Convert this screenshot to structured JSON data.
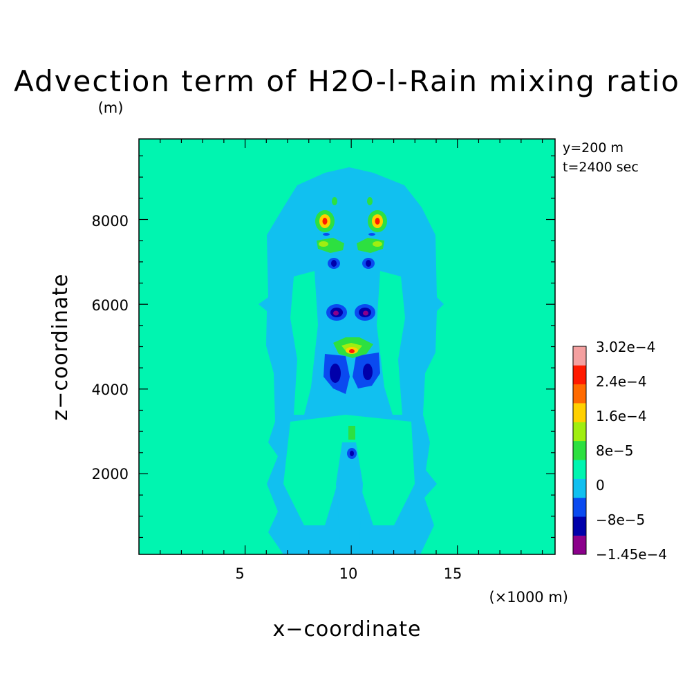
{
  "chart_data": {
    "type": "heatmap",
    "title": "Advection term of H2O-l-Rain mixing ratio",
    "title_units": "(m)",
    "xlabel": "x−coordinate",
    "ylabel": "z−coordinate",
    "x_unit_label": "(×1000 m)",
    "info_lines": [
      "y=200 m",
      "t=2400 sec"
    ],
    "xlim": [
      0,
      19.6
    ],
    "ylim": [
      100,
      9900
    ],
    "x_ticks": [
      5,
      10,
      15
    ],
    "x_tick_labels": [
      "5",
      "10",
      "15"
    ],
    "y_ticks": [
      2000,
      4000,
      6000,
      8000
    ],
    "y_tick_labels": [
      "2000",
      "4000",
      "6000",
      "8000"
    ],
    "grid": false,
    "legend": "right",
    "colorbar": {
      "colors": [
        "#8b008b",
        "#0000aa",
        "#0a4af0",
        "#11c0f0",
        "#00f5b0",
        "#2de040",
        "#a0ee10",
        "#ffd000",
        "#ff6a00",
        "#ff1a00",
        "#f4a0a0"
      ],
      "labels": [
        "−1.45e−4",
        "−8e−5",
        "0",
        "8e−5",
        "1.6e−4",
        "2.4e−4",
        "3.02e−4"
      ]
    },
    "background_level": "0",
    "regions": [
      {
        "level": "0 to -4e-5",
        "color": "#11c0f0",
        "x_range": [
          5.9,
          14.1
        ],
        "z_range": [
          100,
          9000
        ]
      },
      {
        "level": "8e-5 to 1.6e-4",
        "color": "#2de040",
        "center": [
          8.9,
          8000
        ]
      },
      {
        "level": "8e-5 to 1.6e-4",
        "color": "#2de040",
        "center": [
          11.4,
          8000
        ]
      },
      {
        "level": "2.4e-4 to 3.02e-4",
        "color": "#ff1a00",
        "center": [
          8.9,
          7980
        ]
      },
      {
        "level": "2.4e-4 to 3.02e-4",
        "color": "#ff1a00",
        "center": [
          11.4,
          7980
        ]
      },
      {
        "level": "8e-5 to 1.6e-4",
        "color": "#a0ee10",
        "center": [
          9.1,
          7450
        ]
      },
      {
        "level": "8e-5 to 1.6e-4",
        "color": "#a0ee10",
        "center": [
          11.2,
          7450
        ]
      },
      {
        "level": "-8e-5 to -1.45e-4",
        "color": "#0000aa",
        "center": [
          9.3,
          6950
        ]
      },
      {
        "level": "-8e-5 to -1.45e-4",
        "color": "#0000aa",
        "center": [
          11.0,
          6950
        ]
      },
      {
        "level": "-1.45e-4",
        "color": "#8b008b",
        "center": [
          9.4,
          5850
        ]
      },
      {
        "level": "-1.45e-4",
        "color": "#8b008b",
        "center": [
          10.8,
          5850
        ]
      },
      {
        "level": "2.4e-4 to 3.02e-4",
        "color": "#ff1a00",
        "center": [
          10.1,
          4880
        ]
      },
      {
        "level": "-8e-5 to -1.45e-4",
        "color": "#0000aa",
        "center": [
          9.3,
          4350
        ]
      },
      {
        "level": "-8e-5 to -1.45e-4",
        "color": "#0000aa",
        "center": [
          11.0,
          4350
        ]
      },
      {
        "level": "8e-5",
        "color": "#2de040",
        "center": [
          10.1,
          3000
        ]
      },
      {
        "level": "-8e-5",
        "color": "#0a4af0",
        "center": [
          10.1,
          2450
        ]
      }
    ]
  }
}
